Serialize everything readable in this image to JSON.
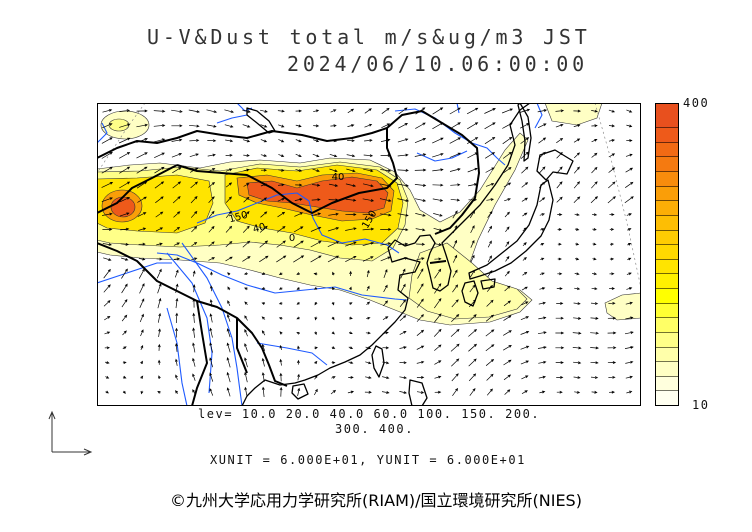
{
  "title": {
    "line1": "U-V&Dust total m/s&ug/m3 JST",
    "line2": "2024/06/10.06:00:00"
  },
  "map": {
    "contour_labels": [
      "40",
      "150",
      "40",
      "0",
      "150"
    ]
  },
  "colorbar": {
    "max_label": "400",
    "min_label": "10",
    "colors": [
      "#e8501e",
      "#ee5a1a",
      "#f26a14",
      "#f57a10",
      "#f88c0c",
      "#fa9e08",
      "#fcae06",
      "#fdbe04",
      "#fecc02",
      "#ffd800",
      "#ffe400",
      "#fff000",
      "#ffff00",
      "#ffff33",
      "#ffff66",
      "#ffff88",
      "#ffffaa",
      "#ffffc4",
      "#ffffdd",
      "#fffff0"
    ]
  },
  "levels": {
    "line1": "lev= 10.0 20.0 40.0 60.0 100. 150. 200.",
    "line2": "300. 400."
  },
  "units": "XUNIT = 6.000E+01, YUNIT = 6.000E+01",
  "credit": "©九州大学応用力学研究所(RIAM)/国立環境研究所(NIES)",
  "icons": {
    "reference_arrows": "axis-arrows-icon"
  },
  "colors": {
    "coastline": "#000000",
    "border": "#000000",
    "river": "#1e5aff",
    "graticule": "#8a8a8a",
    "arrow": "#000000",
    "contour": "#333333"
  }
}
